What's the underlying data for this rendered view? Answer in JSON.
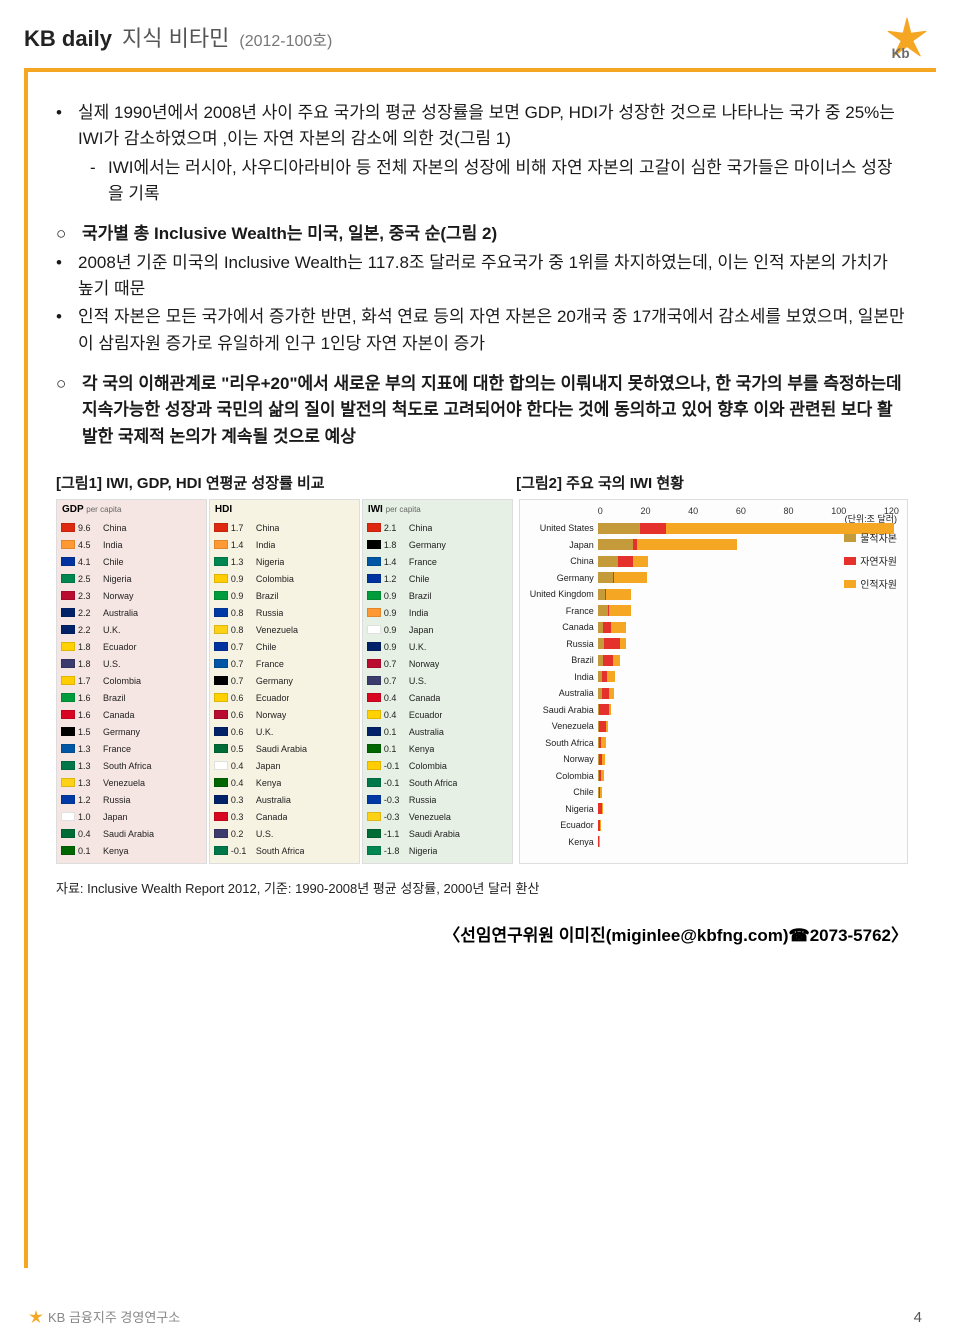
{
  "header": {
    "title_main": "KB daily",
    "title_sub": "지식 비타민",
    "issue": "(2012-100호)"
  },
  "body": {
    "b1": "실제 1990년에서 2008년 사이 주요 국가의 평균 성장률을 보면 GDP, HDI가 성장한 것으로 나타나는 국가 중 25%는 IWI가 감소하였으며 ,이는 자연 자본의 감소에 의한 것(그림 1)",
    "s1": "IWI에서는 러시아, 사우디아라비아 등 전체 자본의 성장에 비해 자연 자본의 고갈이 심한 국가들은 마이너스 성장을 기록",
    "c1": "국가별 총 Inclusive Wealth는 미국, 일본, 중국 순(그림 2)",
    "b2": "2008년 기준 미국의 Inclusive Wealth는 117.8조 달러로 주요국가 중 1위를 차지하였는데, 이는 인적 자본의 가치가 높기 때문",
    "b3": "인적 자본은 모든 국가에서 증가한 반면, 화석 연료 등의 자연 자본은 20개국 중 17개국에서 감소세를 보였으며, 일본만이 삼림자원 증가로 유일하게 인구 1인당 자연 자본이 증가",
    "c2a": "각 국의 이해관계로 \"리우+20\"에서 새로운 부의 지표에 대한 합의는 이뤄내지 못하였으나, 한 국가의 부를 측정하는데 지속가능한 성장과 국민의 삶의 질이 발전의 척도로 고려되어야 한다는 것에 동의하고 있어 향후 이와 관련된 보다 활발한 국제적 논의가 계속될 것으로 예상"
  },
  "chart1": {
    "title": "[그림1] IWI, GDP, HDI 연평균 성장률 비교",
    "columns": [
      {
        "head": "GDP",
        "per": "per capita",
        "bg": "#f6e6e3",
        "rows": [
          {
            "v": "9.6",
            "n": "China",
            "c": "#de2910"
          },
          {
            "v": "4.5",
            "n": "India",
            "c": "#ff9933"
          },
          {
            "v": "4.1",
            "n": "Chile",
            "c": "#0033a0"
          },
          {
            "v": "2.5",
            "n": "Nigeria",
            "c": "#008751"
          },
          {
            "v": "2.3",
            "n": "Norway",
            "c": "#ba0c2f"
          },
          {
            "v": "2.2",
            "n": "Australia",
            "c": "#012169"
          },
          {
            "v": "2.2",
            "n": "U.K.",
            "c": "#012169"
          },
          {
            "v": "1.8",
            "n": "Ecuador",
            "c": "#ffd100"
          },
          {
            "v": "1.8",
            "n": "U.S.",
            "c": "#3c3b6e"
          },
          {
            "v": "1.7",
            "n": "Colombia",
            "c": "#ffcd00"
          },
          {
            "v": "1.6",
            "n": "Brazil",
            "c": "#009b3a"
          },
          {
            "v": "1.6",
            "n": "Canada",
            "c": "#d80621"
          },
          {
            "v": "1.5",
            "n": "Germany",
            "c": "#000000"
          },
          {
            "v": "1.3",
            "n": "France",
            "c": "#0055a4"
          },
          {
            "v": "1.3",
            "n": "South Africa",
            "c": "#007749"
          },
          {
            "v": "1.3",
            "n": "Venezuela",
            "c": "#fcd116"
          },
          {
            "v": "1.2",
            "n": "Russia",
            "c": "#0039a6"
          },
          {
            "v": "1.0",
            "n": "Japan",
            "c": "#ffffff"
          },
          {
            "v": "0.4",
            "n": "Saudi Arabia",
            "c": "#006c35"
          },
          {
            "v": "0.1",
            "n": "Kenya",
            "c": "#006600"
          }
        ]
      },
      {
        "head": "HDI",
        "per": "",
        "bg": "#f7f3e2",
        "rows": [
          {
            "v": "1.7",
            "n": "China",
            "c": "#de2910"
          },
          {
            "v": "1.4",
            "n": "India",
            "c": "#ff9933"
          },
          {
            "v": "1.3",
            "n": "Nigeria",
            "c": "#008751"
          },
          {
            "v": "0.9",
            "n": "Colombia",
            "c": "#ffcd00"
          },
          {
            "v": "0.9",
            "n": "Brazil",
            "c": "#009b3a"
          },
          {
            "v": "0.8",
            "n": "Russia",
            "c": "#0039a6"
          },
          {
            "v": "0.8",
            "n": "Venezuela",
            "c": "#fcd116"
          },
          {
            "v": "0.7",
            "n": "Chile",
            "c": "#0033a0"
          },
          {
            "v": "0.7",
            "n": "France",
            "c": "#0055a4"
          },
          {
            "v": "0.7",
            "n": "Germany",
            "c": "#000000"
          },
          {
            "v": "0.6",
            "n": "Ecuador",
            "c": "#ffd100"
          },
          {
            "v": "0.6",
            "n": "Norway",
            "c": "#ba0c2f"
          },
          {
            "v": "0.6",
            "n": "U.K.",
            "c": "#012169"
          },
          {
            "v": "0.5",
            "n": "Saudi Arabia",
            "c": "#006c35"
          },
          {
            "v": "0.4",
            "n": "Japan",
            "c": "#ffffff"
          },
          {
            "v": "0.4",
            "n": "Kenya",
            "c": "#006600"
          },
          {
            "v": "0.3",
            "n": "Australia",
            "c": "#012169"
          },
          {
            "v": "0.3",
            "n": "Canada",
            "c": "#d80621"
          },
          {
            "v": "0.2",
            "n": "U.S.",
            "c": "#3c3b6e"
          },
          {
            "v": "-0.1",
            "n": "South Africa",
            "c": "#007749"
          }
        ]
      },
      {
        "head": "IWI",
        "per": "per capita",
        "bg": "#e6f0e4",
        "rows": [
          {
            "v": "2.1",
            "n": "China",
            "c": "#de2910"
          },
          {
            "v": "1.8",
            "n": "Germany",
            "c": "#000000"
          },
          {
            "v": "1.4",
            "n": "France",
            "c": "#0055a4"
          },
          {
            "v": "1.2",
            "n": "Chile",
            "c": "#0033a0"
          },
          {
            "v": "0.9",
            "n": "Brazil",
            "c": "#009b3a"
          },
          {
            "v": "0.9",
            "n": "India",
            "c": "#ff9933"
          },
          {
            "v": "0.9",
            "n": "Japan",
            "c": "#ffffff"
          },
          {
            "v": "0.9",
            "n": "U.K.",
            "c": "#012169"
          },
          {
            "v": "0.7",
            "n": "Norway",
            "c": "#ba0c2f"
          },
          {
            "v": "0.7",
            "n": "U.S.",
            "c": "#3c3b6e"
          },
          {
            "v": "0.4",
            "n": "Canada",
            "c": "#d80621"
          },
          {
            "v": "0.4",
            "n": "Ecuador",
            "c": "#ffd100"
          },
          {
            "v": "0.1",
            "n": "Australia",
            "c": "#012169"
          },
          {
            "v": "0.1",
            "n": "Kenya",
            "c": "#006600"
          },
          {
            "v": "-0.1",
            "n": "Colombia",
            "c": "#ffcd00"
          },
          {
            "v": "-0.1",
            "n": "South Africa",
            "c": "#007749"
          },
          {
            "v": "-0.3",
            "n": "Russia",
            "c": "#0039a6"
          },
          {
            "v": "-0.3",
            "n": "Venezuela",
            "c": "#fcd116"
          },
          {
            "v": "-1.1",
            "n": "Saudi Arabia",
            "c": "#006c35"
          },
          {
            "v": "-1.8",
            "n": "Nigeria",
            "c": "#008751"
          }
        ]
      }
    ]
  },
  "chart2": {
    "title": "[그림2] 주요 국의 IWI 현황",
    "unit": "(단위:조 달러)",
    "xmax": 120,
    "xticks": [
      "0",
      "20",
      "40",
      "60",
      "80",
      "100",
      "120"
    ],
    "colors": {
      "produced": "#c49a3a",
      "natural": "#e4312b",
      "human": "#f5a623"
    },
    "legend": [
      {
        "label": "물적자본",
        "color": "#c49a3a"
      },
      {
        "label": "자연자원",
        "color": "#e4312b"
      },
      {
        "label": "인적자원",
        "color": "#f5a623"
      }
    ],
    "rows": [
      {
        "n": "United States",
        "p": 17,
        "r": 10,
        "h": 91
      },
      {
        "n": "Japan",
        "p": 14,
        "r": 1.5,
        "h": 40
      },
      {
        "n": "China",
        "p": 8,
        "r": 6,
        "h": 6
      },
      {
        "n": "Germany",
        "p": 6,
        "r": 0.6,
        "h": 13
      },
      {
        "n": "United Kingdom",
        "p": 3,
        "r": 0.4,
        "h": 10
      },
      {
        "n": "France",
        "p": 4,
        "r": 0.4,
        "h": 9
      },
      {
        "n": "Canada",
        "p": 2.2,
        "r": 3,
        "h": 6
      },
      {
        "n": "Russia",
        "p": 2.4,
        "r": 6.5,
        "h": 2.5
      },
      {
        "n": "Brazil",
        "p": 2,
        "r": 4.2,
        "h": 2.5
      },
      {
        "n": "India",
        "p": 1.5,
        "r": 2.3,
        "h": 3.2
      },
      {
        "n": "Australia",
        "p": 1.5,
        "r": 2.8,
        "h": 2.2
      },
      {
        "n": "Saudi Arabia",
        "p": 0.6,
        "r": 3.8,
        "h": 0.9
      },
      {
        "n": "Venezuela",
        "p": 0.5,
        "r": 2.6,
        "h": 0.8
      },
      {
        "n": "South Africa",
        "p": 0.5,
        "r": 0.7,
        "h": 1.9
      },
      {
        "n": "Norway",
        "p": 0.6,
        "r": 1.0,
        "h": 1.2
      },
      {
        "n": "Colombia",
        "p": 0.4,
        "r": 0.9,
        "h": 1.1
      },
      {
        "n": "Chile",
        "p": 0.3,
        "r": 0.5,
        "h": 1.0
      },
      {
        "n": "Nigeria",
        "p": 0.2,
        "r": 1.3,
        "h": 0.3
      },
      {
        "n": "Ecuador",
        "p": 0.15,
        "r": 0.7,
        "h": 0.3
      },
      {
        "n": "Kenya",
        "p": 0.1,
        "r": 0.2,
        "h": 0.4
      }
    ]
  },
  "source": "자료: Inclusive Wealth Report 2012, 기준: 1990-2008년 평균 성장률, 2000년 달러 환산",
  "author": "〈선임연구위원 이미진(miginlee@kbfng.com)☎2073-5762〉",
  "footer_org": "KB 금융지주 경영연구소",
  "page": "4"
}
